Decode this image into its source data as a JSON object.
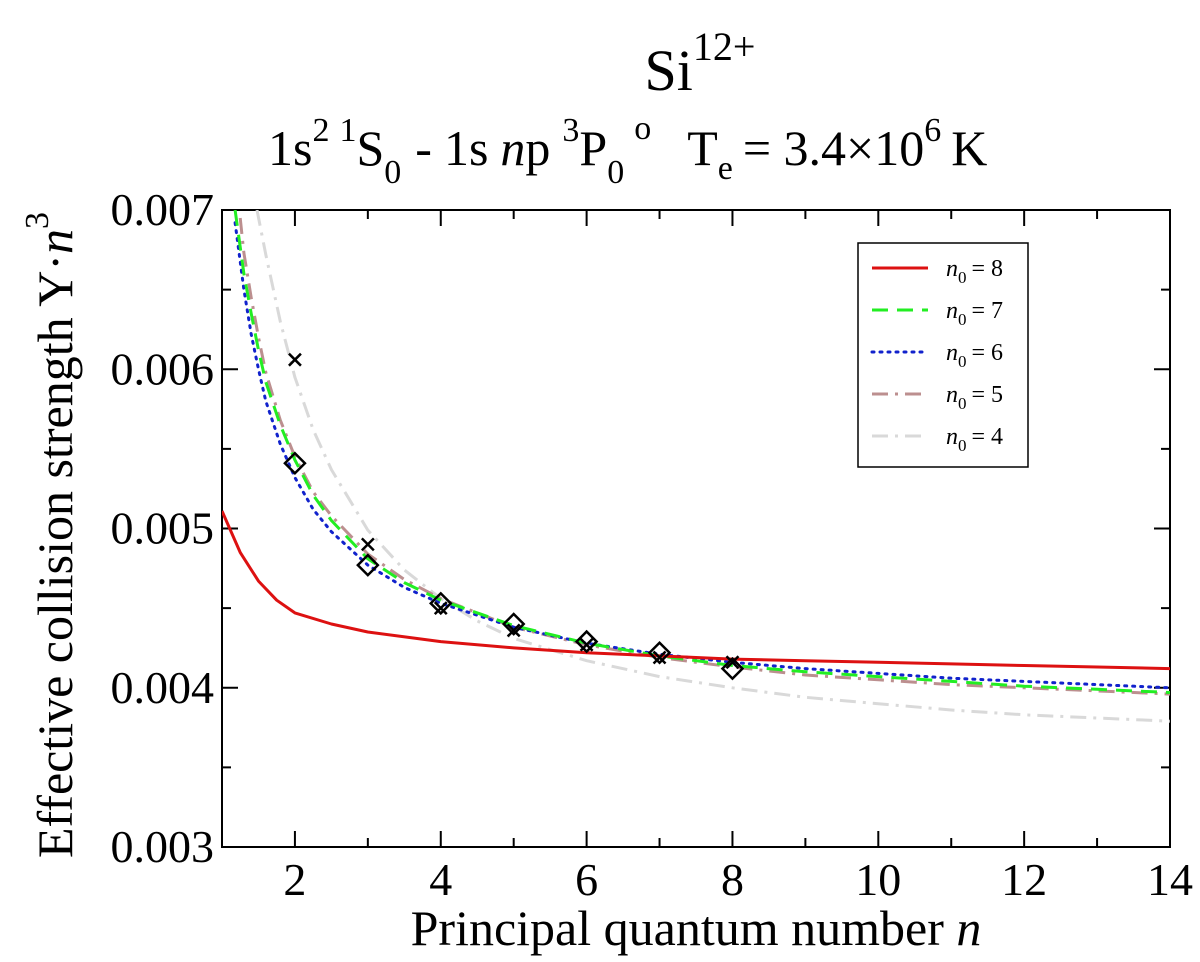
{
  "chart_data": {
    "type": "line",
    "title": {
      "ion": "Si",
      "charge": "12+"
    },
    "subtitle": {
      "lower_config": "1s",
      "lower_config_sup": "2",
      "lower_term_mult": "1",
      "lower_term": "S",
      "lower_term_J": "0",
      "separator": "-",
      "upper_config_prefix": "1s",
      "upper_config_n": "n",
      "upper_config_l": "p",
      "upper_term_mult": "3",
      "upper_term": "P",
      "upper_term_J": "0",
      "upper_term_parity": "o",
      "temp_label": "T",
      "temp_sub": "e",
      "temp_value": "= 3.4×10",
      "temp_exp": "6",
      "temp_unit": "K"
    },
    "xlabel": {
      "text": "Principal quantum number ",
      "italic": "n"
    },
    "ylabel": {
      "text": "Effective collision strength Y·",
      "italic": "n",
      "sup": "3"
    },
    "xlim": [
      1,
      14
    ],
    "ylim": [
      0.003,
      0.007
    ],
    "x_ticks": [
      2,
      4,
      6,
      8,
      10,
      12,
      14
    ],
    "x_tick_labels": [
      "2",
      "4",
      "6",
      "8",
      "10",
      "12",
      "14"
    ],
    "x_minor_ticks": [
      3,
      5,
      7,
      9,
      11,
      13
    ],
    "y_ticks": [
      0.003,
      0.004,
      0.005,
      0.006,
      0.007
    ],
    "y_tick_labels": [
      "0.003",
      "0.004",
      "0.005",
      "0.006",
      "0.007"
    ],
    "y_minor_ticks": [
      0.0035,
      0.0045,
      0.0055,
      0.0065
    ],
    "series": [
      {
        "name": "n0 = 8",
        "legend_label": "n",
        "legend_sub": "0",
        "legend_value": "= 8",
        "color": "#dd1111",
        "dash": "solid",
        "x": [
          1,
          1.25,
          1.5,
          1.75,
          2,
          2.5,
          3,
          4,
          5,
          6,
          7,
          8,
          9,
          10,
          11,
          12,
          13,
          14
        ],
        "y": [
          0.00511,
          0.00485,
          0.00467,
          0.00455,
          0.00447,
          0.0044,
          0.00435,
          0.00429,
          0.00425,
          0.00422,
          0.0042,
          0.00418,
          0.00417,
          0.00416,
          0.00415,
          0.00414,
          0.00413,
          0.00412
        ]
      },
      {
        "name": "n0 = 7",
        "legend_label": "n",
        "legend_sub": "0",
        "legend_value": "= 7",
        "color": "#22ee22",
        "dash": "long",
        "x": [
          1.18,
          1.3,
          1.4,
          1.5,
          1.6,
          1.8,
          2,
          2.25,
          2.5,
          3,
          3.5,
          4,
          5,
          6,
          7,
          8,
          9,
          10,
          11,
          12,
          13,
          14
        ],
        "y": [
          0.007,
          0.0066,
          0.00635,
          0.00612,
          0.00592,
          0.00565,
          0.00543,
          0.00521,
          0.00505,
          0.00481,
          0.00466,
          0.00455,
          0.00439,
          0.00428,
          0.0042,
          0.00414,
          0.0041,
          0.00407,
          0.00404,
          0.00401,
          0.00399,
          0.00397
        ]
      },
      {
        "name": "n0 = 6",
        "legend_label": "n",
        "legend_sub": "0",
        "legend_value": "= 6",
        "color": "#1122cc",
        "dash": "dotted",
        "x": [
          1.18,
          1.3,
          1.4,
          1.5,
          1.6,
          1.8,
          2,
          2.25,
          2.5,
          3,
          3.5,
          4,
          5,
          6,
          7,
          8,
          9,
          10,
          11,
          12,
          13,
          14
        ],
        "y": [
          0.00692,
          0.0065,
          0.00622,
          0.006,
          0.0058,
          0.00553,
          0.00532,
          0.00512,
          0.00498,
          0.00477,
          0.00463,
          0.00453,
          0.00438,
          0.00428,
          0.00421,
          0.00416,
          0.00412,
          0.00409,
          0.00406,
          0.00404,
          0.00402,
          0.004
        ]
      },
      {
        "name": "n0 = 5",
        "legend_label": "n",
        "legend_sub": "0",
        "legend_value": "= 5",
        "color": "#bc8f8f",
        "dash": "dashdot",
        "x": [
          1.25,
          1.3,
          1.4,
          1.5,
          1.6,
          1.8,
          2,
          2.25,
          2.5,
          3,
          3.5,
          4,
          5,
          6,
          7,
          8,
          9,
          10,
          11,
          12,
          13,
          14
        ],
        "y": [
          0.00695,
          0.00673,
          0.00645,
          0.0062,
          0.00598,
          0.00568,
          0.00545,
          0.00523,
          0.00508,
          0.00484,
          0.00468,
          0.00456,
          0.00438,
          0.00427,
          0.00419,
          0.00413,
          0.00408,
          0.00405,
          0.00402,
          0.004,
          0.00398,
          0.00396
        ]
      },
      {
        "name": "n0 = 4",
        "legend_label": "n",
        "legend_sub": "0",
        "legend_value": "= 4",
        "color": "#d9d9d9",
        "dash": "dashdot",
        "x": [
          1.48,
          1.6,
          1.8,
          2,
          2.25,
          2.5,
          3,
          3.5,
          4,
          4.5,
          5,
          6,
          7,
          8,
          9,
          10,
          11,
          12,
          13,
          14
        ],
        "y": [
          0.007,
          0.00672,
          0.0063,
          0.00595,
          0.00562,
          0.00537,
          0.00499,
          0.00474,
          0.00456,
          0.00442,
          0.00431,
          0.00417,
          0.00407,
          0.004,
          0.00394,
          0.0039,
          0.00386,
          0.00383,
          0.00381,
          0.00379
        ]
      }
    ],
    "markers": [
      {
        "name": "diamonds",
        "shape": "diamond",
        "x": [
          2,
          3,
          4,
          5,
          6,
          7,
          8
        ],
        "y": [
          0.00541,
          0.00477,
          0.00453,
          0.0044,
          0.00429,
          0.00422,
          0.00412
        ]
      },
      {
        "name": "crosses",
        "shape": "cross",
        "x": [
          2,
          3,
          4,
          5,
          6,
          7,
          8
        ],
        "y": [
          0.00606,
          0.0049,
          0.0045,
          0.00436,
          0.00427,
          0.00419,
          0.00416
        ]
      }
    ],
    "legend_position": "top-right",
    "grid": false
  }
}
